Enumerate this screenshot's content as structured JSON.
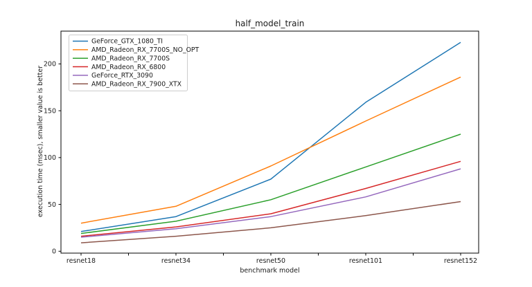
{
  "chart_data": {
    "type": "line",
    "title": "half_model_train",
    "xlabel": "benchmark model",
    "ylabel": "execution time (msec), smaller value is better",
    "categories": [
      "resnet18",
      "resnet34",
      "resnet50",
      "resnet101",
      "resnet152"
    ],
    "series": [
      {
        "name": "GeForce_GTX_1080_TI",
        "color": "#1f77b4",
        "values": [
          21,
          37,
          77,
          159,
          223
        ]
      },
      {
        "name": "AMD_Radeon_RX_7700S_NO_OPT",
        "color": "#ff7f0e",
        "values": [
          30,
          48,
          91,
          139,
          186
        ]
      },
      {
        "name": "AMD_Radeon_RX_7700S",
        "color": "#2ca02c",
        "values": [
          19,
          32,
          55,
          90,
          125
        ]
      },
      {
        "name": "AMD_Radeon_RX_6800",
        "color": "#d62728",
        "values": [
          16,
          26,
          40,
          67,
          96
        ]
      },
      {
        "name": "GeForce_RTX_3090",
        "color": "#9467bd",
        "values": [
          15,
          24,
          37,
          58,
          88
        ]
      },
      {
        "name": "AMD_Radeon_RX_7900_XTX",
        "color": "#8c564b",
        "values": [
          9,
          16,
          25,
          38,
          53
        ]
      }
    ],
    "yticks": [
      0,
      50,
      100,
      150,
      200
    ],
    "ylim": [
      -2,
      235
    ],
    "grid": false,
    "legend_position": "upper-left",
    "axis_color": "#000000",
    "legend_border_color": "#cccccc"
  }
}
